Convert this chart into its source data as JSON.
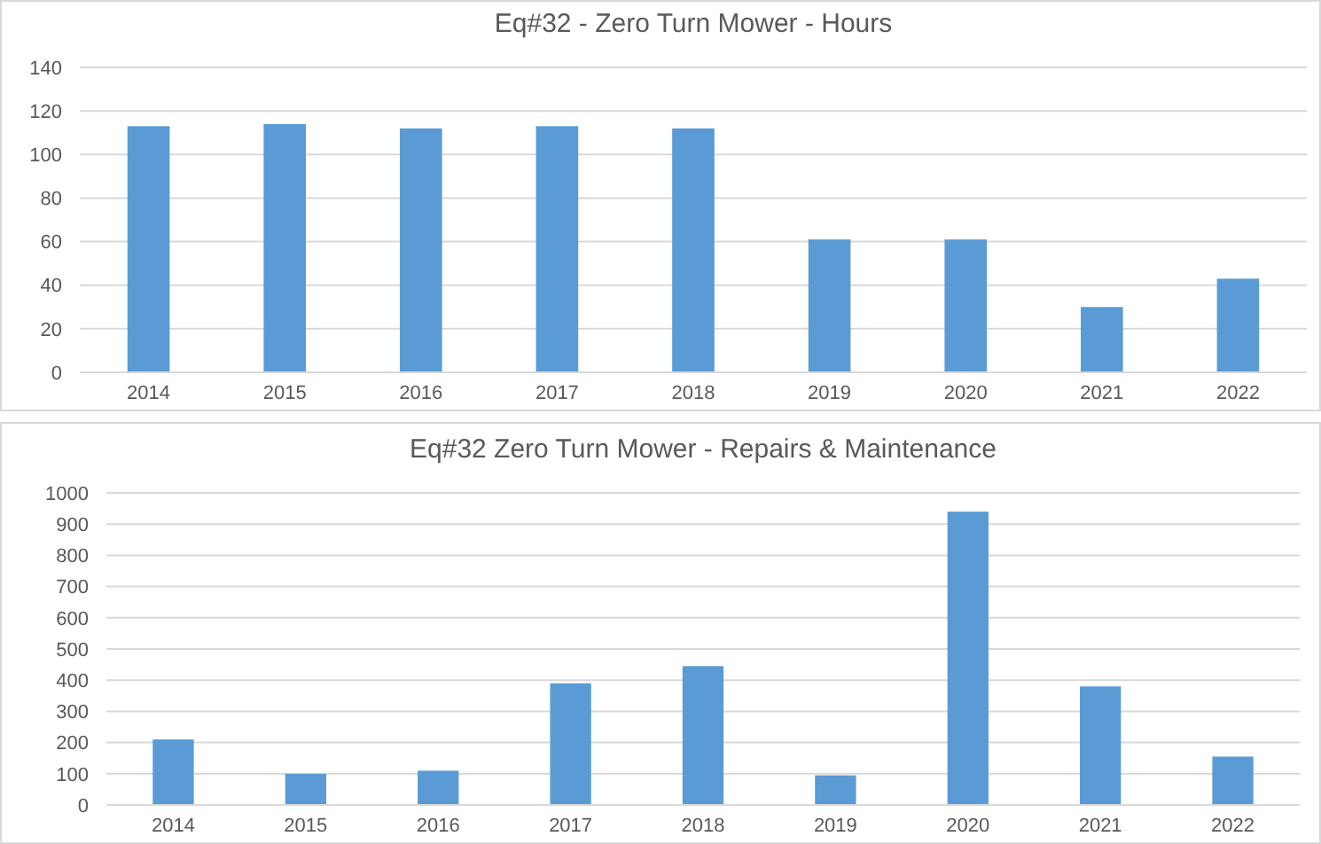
{
  "chart_data": [
    {
      "type": "bar",
      "title": "Eq#32 - Zero Turn Mower - Hours",
      "categories": [
        "2014",
        "2015",
        "2016",
        "2017",
        "2018",
        "2019",
        "2020",
        "2021",
        "2022"
      ],
      "values": [
        113,
        114,
        112,
        113,
        112,
        61,
        61,
        30,
        43
      ],
      "color": "#5b9bd5",
      "ylim": [
        0,
        140
      ],
      "yticks": [
        0,
        20,
        40,
        60,
        80,
        100,
        120,
        140
      ],
      "grid": "y"
    },
    {
      "type": "bar",
      "title": "Eq#32 Zero Turn Mower - Repairs & Maintenance",
      "categories": [
        "2014",
        "2015",
        "2016",
        "2017",
        "2018",
        "2019",
        "2020",
        "2021",
        "2022"
      ],
      "values": [
        210,
        100,
        110,
        390,
        445,
        95,
        940,
        380,
        155
      ],
      "color": "#5b9bd5",
      "ylim": [
        0,
        1000
      ],
      "yticks": [
        0,
        100,
        200,
        300,
        400,
        500,
        600,
        700,
        800,
        900,
        1000
      ],
      "grid": "y"
    }
  ]
}
